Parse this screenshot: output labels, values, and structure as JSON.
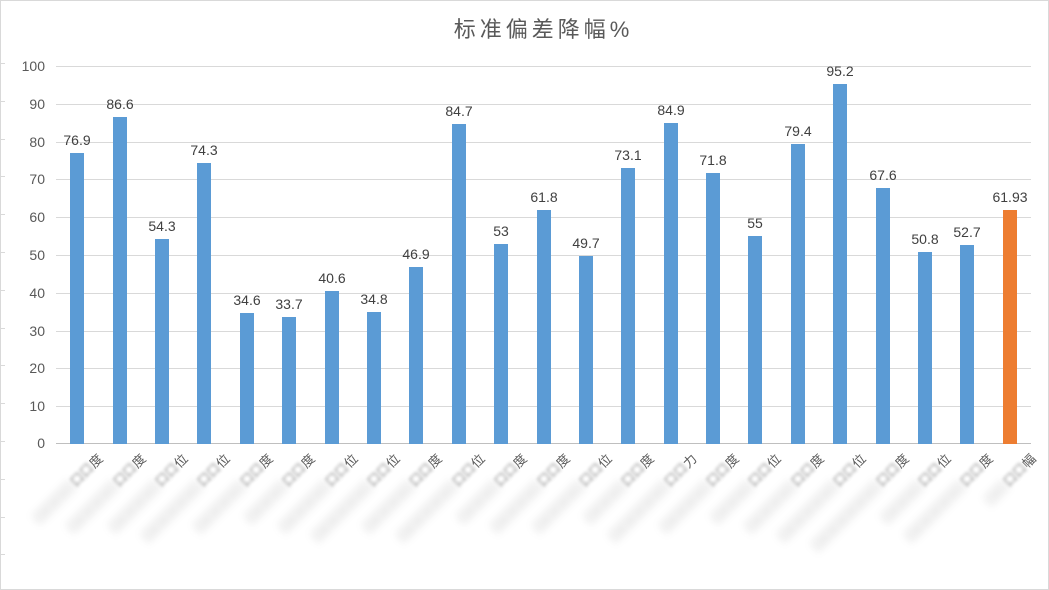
{
  "chart_data": {
    "type": "bar",
    "title": "标准偏差降幅%",
    "xlabel": "",
    "ylabel": "",
    "ylim": [
      0,
      100
    ],
    "grid": true,
    "legend": "none",
    "y_tick_labels": [
      "0",
      "10",
      "20",
      "30",
      "40",
      "50",
      "60",
      "70",
      "80",
      "90",
      "100"
    ],
    "y_ticks": [
      0,
      10,
      20,
      30,
      40,
      50,
      60,
      70,
      80,
      90,
      100
    ],
    "values": [
      76.9,
      86.6,
      54.3,
      74.3,
      34.6,
      33.7,
      40.6,
      34.8,
      46.9,
      84.7,
      53,
      61.8,
      49.7,
      73.1,
      84.9,
      71.8,
      55,
      79.4,
      95.2,
      67.6,
      50.8,
      52.7,
      61.93
    ],
    "value_labels": [
      "76.9",
      "86.6",
      "54.3",
      "74.3",
      "34.6",
      "33.7",
      "40.6",
      "34.8",
      "46.9",
      "84.7",
      "53",
      "61.8",
      "49.7",
      "73.1",
      "84.9",
      "71.8",
      "55",
      "79.4",
      "95.2",
      "67.6",
      "50.8",
      "52.7",
      "61.93"
    ],
    "categories_redacted": true,
    "categories": [
      {
        "stub": "口口口口口口",
        "tail": "度"
      },
      {
        "stub": "口口口口口口口",
        "tail": "度"
      },
      {
        "stub": "口口口口口口口",
        "tail": "位"
      },
      {
        "stub": "口口口口口口口口",
        "tail": "位"
      },
      {
        "stub": "口口口口口口口",
        "tail": "度"
      },
      {
        "stub": "口口口口口口",
        "tail": "度"
      },
      {
        "stub": "口口口口口口口",
        "tail": "位"
      },
      {
        "stub": "口口口口口口口口",
        "tail": "位"
      },
      {
        "stub": "口口口口口口口",
        "tail": "度"
      },
      {
        "stub": "口口口口口口口口",
        "tail": "位"
      },
      {
        "stub": "口口口口口口",
        "tail": "度"
      },
      {
        "stub": "口口口口口口口",
        "tail": "度"
      },
      {
        "stub": "口口口口口口口",
        "tail": "位"
      },
      {
        "stub": "口口口口口口",
        "tail": "度"
      },
      {
        "stub": "口口口口口口口口",
        "tail": "力"
      },
      {
        "stub": "口口口口口口口",
        "tail": "度"
      },
      {
        "stub": "口口口口口口",
        "tail": "位"
      },
      {
        "stub": "口口口口口口口",
        "tail": "度"
      },
      {
        "stub": "口口口口口口口口",
        "tail": "位"
      },
      {
        "stub": "口口口口口口口口口",
        "tail": "度"
      },
      {
        "stub": "口口口口口口",
        "tail": "位"
      },
      {
        "stub": "口口口口口口口口",
        "tail": "度"
      },
      {
        "stub": "口口口口",
        "tail": "幅"
      }
    ],
    "highlight_index": 22,
    "colors": {
      "bar": "#5B9BD5",
      "highlight_bar": "#ED7D31",
      "gridline": "#D9D9D9",
      "axis_line": "#BFBFBF",
      "tick_text": "#595959",
      "value_text": "#404040",
      "title_text": "#595959"
    }
  }
}
